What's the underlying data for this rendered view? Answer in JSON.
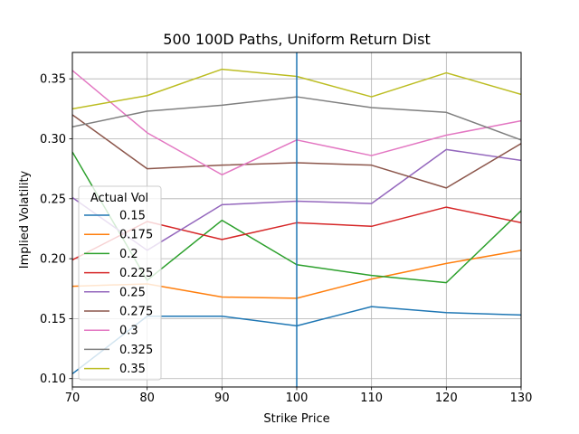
{
  "chart_data": {
    "type": "line",
    "title": "500 100D Paths, Uniform Return Dist",
    "xlabel": "Strike Price",
    "ylabel": "Implied Volatility",
    "x": [
      70,
      80,
      90,
      100,
      110,
      120,
      130
    ],
    "xlim": [
      70,
      130
    ],
    "ylim": [
      0.093,
      0.372
    ],
    "xticks": [
      "70",
      "80",
      "90",
      "100",
      "110",
      "120",
      "130"
    ],
    "yticks": [
      "0.10",
      "0.15",
      "0.20",
      "0.25",
      "0.30",
      "0.35"
    ],
    "xtick_values": [
      70,
      80,
      90,
      100,
      110,
      120,
      130
    ],
    "ytick_values": [
      0.1,
      0.15,
      0.2,
      0.25,
      0.3,
      0.35
    ],
    "grid": true,
    "vline_x": 100,
    "vline_color": "#1f77b4",
    "legend": {
      "title": "Actual Vol",
      "placement": "lower-left"
    },
    "series": [
      {
        "name": "0.15",
        "color": "#1f77b4",
        "values": [
          0.104,
          0.152,
          0.152,
          0.144,
          0.16,
          0.155,
          0.153
        ]
      },
      {
        "name": "0.175",
        "color": "#ff7f0e",
        "values": [
          0.177,
          0.179,
          0.168,
          0.167,
          0.183,
          0.196,
          0.207
        ]
      },
      {
        "name": "0.2",
        "color": "#2ca02c",
        "values": [
          0.289,
          0.182,
          0.232,
          0.195,
          0.186,
          0.18,
          0.24
        ]
      },
      {
        "name": "0.225",
        "color": "#d62728",
        "values": [
          0.199,
          0.231,
          0.216,
          0.23,
          0.227,
          0.243,
          0.23
        ]
      },
      {
        "name": "0.25",
        "color": "#9467bd",
        "values": [
          0.251,
          0.207,
          0.245,
          0.248,
          0.246,
          0.291,
          0.282
        ]
      },
      {
        "name": "0.275",
        "color": "#8c564b",
        "values": [
          0.32,
          0.275,
          0.278,
          0.28,
          0.278,
          0.259,
          0.296
        ]
      },
      {
        "name": "0.3",
        "color": "#e377c2",
        "values": [
          0.357,
          0.305,
          0.27,
          0.299,
          0.286,
          0.303,
          0.315
        ]
      },
      {
        "name": "0.325",
        "color": "#7f7f7f",
        "values": [
          0.31,
          0.323,
          0.328,
          0.335,
          0.326,
          0.322,
          0.299
        ]
      },
      {
        "name": "0.35",
        "color": "#bcbd22",
        "values": [
          0.325,
          0.336,
          0.358,
          0.352,
          0.335,
          0.355,
          0.337
        ]
      }
    ]
  }
}
